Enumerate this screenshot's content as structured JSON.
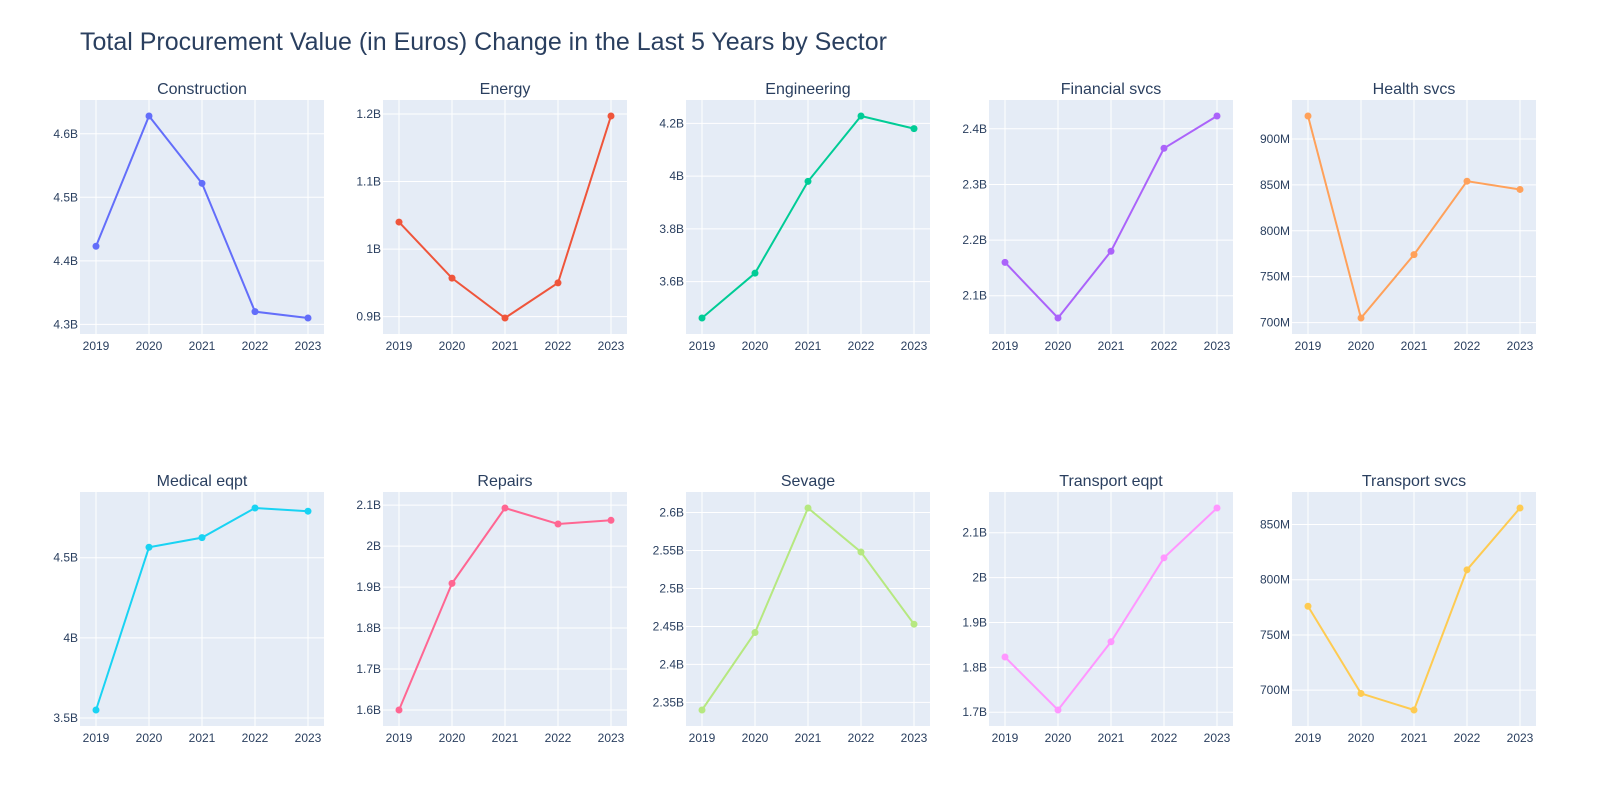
{
  "chart_data": {
    "type": "line",
    "title": "Total Procurement Value (in Euros) Change in the Last 5 Years by Sector",
    "x": [
      "2019",
      "2020",
      "2021",
      "2022",
      "2023"
    ],
    "grid": true,
    "background_color": "#e5ecf6",
    "subplots": [
      {
        "title": "Construction",
        "color": "#636efa",
        "values": [
          4423000000.0,
          4628000000.0,
          4522000000.0,
          4320000000.0,
          4310000000.0
        ],
        "yticks": [
          {
            "value": 4300000000.0,
            "label": "4.3B"
          },
          {
            "value": 4400000000.0,
            "label": "4.4B"
          },
          {
            "value": 4500000000.0,
            "label": "4.5B"
          },
          {
            "value": 4600000000.0,
            "label": "4.6B"
          }
        ]
      },
      {
        "title": "Energy",
        "color": "#ef553b",
        "values": [
          1040000000.0,
          957000000.0,
          898000000.0,
          950000000.0,
          1197000000.0
        ],
        "yticks": [
          {
            "value": 900000000.0,
            "label": "0.9B"
          },
          {
            "value": 1000000000.0,
            "label": "1B"
          },
          {
            "value": 1100000000.0,
            "label": "1.1B"
          },
          {
            "value": 1200000000.0,
            "label": "1.2B"
          }
        ]
      },
      {
        "title": "Engineering",
        "color": "#00cc96",
        "values": [
          3462000000.0,
          3632000000.0,
          3980000000.0,
          4228000000.0,
          4180000000.0
        ],
        "yticks": [
          {
            "value": 3600000000.0,
            "label": "3.6B"
          },
          {
            "value": 3800000000.0,
            "label": "3.8B"
          },
          {
            "value": 4000000000.0,
            "label": "4B"
          },
          {
            "value": 4200000000.0,
            "label": "4.2B"
          }
        ]
      },
      {
        "title": "Financial svcs",
        "color": "#ab63fa",
        "values": [
          2160000000.0,
          2060000000.0,
          2180000000.0,
          2365000000.0,
          2423000000.0
        ],
        "yticks": [
          {
            "value": 2100000000.0,
            "label": "2.1B"
          },
          {
            "value": 2200000000.0,
            "label": "2.2B"
          },
          {
            "value": 2300000000.0,
            "label": "2.3B"
          },
          {
            "value": 2400000000.0,
            "label": "2.4B"
          }
        ]
      },
      {
        "title": "Health svcs",
        "color": "#ffa15a",
        "values": [
          925000000.0,
          705000000.0,
          774000000.0,
          854000000.0,
          845000000.0
        ],
        "yticks": [
          {
            "value": 700000000.0,
            "label": "700M"
          },
          {
            "value": 750000000.0,
            "label": "750M"
          },
          {
            "value": 800000000.0,
            "label": "800M"
          },
          {
            "value": 850000000.0,
            "label": "850M"
          },
          {
            "value": 900000000.0,
            "label": "900M"
          }
        ]
      },
      {
        "title": "Medical eqpt",
        "color": "#19d3f3",
        "values": [
          3550000000.0,
          4565000000.0,
          4625000000.0,
          4810000000.0,
          4790000000.0
        ],
        "yticks": [
          {
            "value": 3500000000.0,
            "label": "3.5B"
          },
          {
            "value": 4000000000.0,
            "label": "4B"
          },
          {
            "value": 4500000000.0,
            "label": "4.5B"
          }
        ]
      },
      {
        "title": "Repairs",
        "color": "#ff6692",
        "values": [
          1600000000.0,
          1909000000.0,
          2093000000.0,
          2054000000.0,
          2063000000.0
        ],
        "yticks": [
          {
            "value": 1600000000.0,
            "label": "1.6B"
          },
          {
            "value": 1700000000.0,
            "label": "1.7B"
          },
          {
            "value": 1800000000.0,
            "label": "1.8B"
          },
          {
            "value": 1900000000.0,
            "label": "1.9B"
          },
          {
            "value": 2000000000.0,
            "label": "2B"
          },
          {
            "value": 2100000000.0,
            "label": "2.1B"
          }
        ]
      },
      {
        "title": "Sevage",
        "color": "#b6e880",
        "values": [
          2340000000.0,
          2442000000.0,
          2606000000.0,
          2548000000.0,
          2453000000.0
        ],
        "yticks": [
          {
            "value": 2350000000.0,
            "label": "2.35B"
          },
          {
            "value": 2400000000.0,
            "label": "2.4B"
          },
          {
            "value": 2450000000.0,
            "label": "2.45B"
          },
          {
            "value": 2500000000.0,
            "label": "2.5B"
          },
          {
            "value": 2550000000.0,
            "label": "2.55B"
          },
          {
            "value": 2600000000.0,
            "label": "2.6B"
          }
        ]
      },
      {
        "title": "Transport eqpt",
        "color": "#ff97ff",
        "values": [
          1823000000.0,
          1705000000.0,
          1857000000.0,
          2044000000.0,
          2155000000.0
        ],
        "yticks": [
          {
            "value": 1700000000.0,
            "label": "1.7B"
          },
          {
            "value": 1800000000.0,
            "label": "1.8B"
          },
          {
            "value": 1900000000.0,
            "label": "1.9B"
          },
          {
            "value": 2000000000.0,
            "label": "2B"
          },
          {
            "value": 2100000000.0,
            "label": "2.1B"
          }
        ]
      },
      {
        "title": "Transport svcs",
        "color": "#fecb52",
        "values": [
          776000000.0,
          697000000.0,
          682000000.0,
          809000000.0,
          865000000.0
        ],
        "yticks": [
          {
            "value": 700000000.0,
            "label": "700M"
          },
          {
            "value": 750000000.0,
            "label": "750M"
          },
          {
            "value": 800000000.0,
            "label": "800M"
          },
          {
            "value": 850000000.0,
            "label": "850M"
          }
        ]
      }
    ]
  }
}
